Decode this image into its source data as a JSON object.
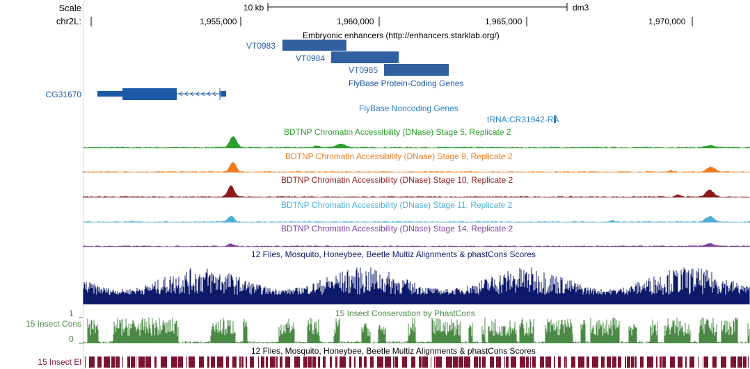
{
  "ruler": {
    "scale_label": "Scale",
    "chrom_label": "chr2L:",
    "scale_bar_text": "10 kb",
    "assembly": "dm3",
    "positions": [
      "1,955,000",
      "1,960,000",
      "1,965,000",
      "1,970,000"
    ]
  },
  "enhancers": {
    "title": "Embryonic enhancers (http://enhancers.starklab.org/)",
    "items": [
      "VT0983",
      "VT0984",
      "VT0985"
    ]
  },
  "protein_coding": {
    "title": "FlyBase Protein-Coding Genes",
    "gene_label": "CG31670"
  },
  "noncoding": {
    "title": "FlyBase Noncoding Genes",
    "gene_label": "tRNA:CR31942-RA"
  },
  "dnase": [
    {
      "title": "BDTNP Chromatin Accessibility (DNase) Stage 5, Replicate 2",
      "color": "#2ca02c"
    },
    {
      "title": "BDTNP Chromatin Accessibility (DNase) Stage 9, Replicate 2",
      "color": "#f07a1e"
    },
    {
      "title": "BDTNP Chromatin Accessibility (DNase) Stage 10, Replicate 2",
      "color": "#8c1a1a"
    },
    {
      "title": "BDTNP Chromatin Accessibility (DNase) Stage 11, Replicate 2",
      "color": "#4aaed6"
    },
    {
      "title": "BDTNP Chromatin Accessibility (DNase) Stage 14, Replicate 2",
      "color": "#7a3fa0"
    }
  ],
  "multiz": {
    "title": "12 Flies, Mosquito, Honeybee, Beetle Multiz Alignments & phastCons Scores",
    "color": "#0d1a6a"
  },
  "phastcons": {
    "title": "15 Insect Conservation by PhastCons",
    "left_label": "15 Insect Cons",
    "axis_max": "1",
    "axis_min": "0",
    "color": "#4a8a44"
  },
  "elements": {
    "title": "12 Flies, Mosquito, Honeybee, Beetle Multiz Alignments & phastCons Scores",
    "left_label": "15 Insect El",
    "color": "#7a1430"
  },
  "colors": {
    "enhancer": "#3060a0",
    "gene": "#1c5aa8",
    "noncoding": "#2b7fc8",
    "text_dark": "#000000"
  }
}
